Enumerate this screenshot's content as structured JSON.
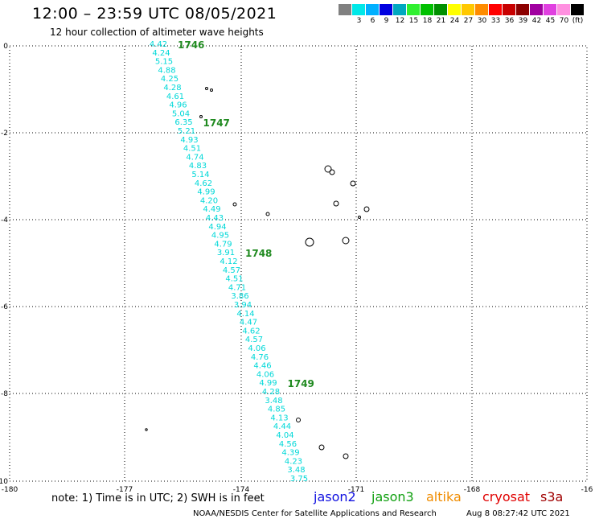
{
  "header": {
    "title": "12:00 – 23:59 UTC 08/05/2021",
    "subtitle": "12 hour collection of altimeter wave heights"
  },
  "legend": {
    "unit_label": "(ft)",
    "items": [
      {
        "label": "",
        "color": "#808080"
      },
      {
        "label": "3",
        "color": "#00e8e8"
      },
      {
        "label": "6",
        "color": "#00b0ff"
      },
      {
        "label": "9",
        "color": "#0000e0"
      },
      {
        "label": "12",
        "color": "#00a8c0"
      },
      {
        "label": "15",
        "color": "#30f030"
      },
      {
        "label": "18",
        "color": "#00c000"
      },
      {
        "label": "21",
        "color": "#009000"
      },
      {
        "label": "24",
        "color": "#ffff00"
      },
      {
        "label": "27",
        "color": "#ffc800"
      },
      {
        "label": "30",
        "color": "#ff8c00"
      },
      {
        "label": "33",
        "color": "#ff0000"
      },
      {
        "label": "36",
        "color": "#c80000"
      },
      {
        "label": "39",
        "color": "#8c0000"
      },
      {
        "label": "42",
        "color": "#a000a0"
      },
      {
        "label": "45",
        "color": "#e040e0"
      },
      {
        "label": "70",
        "color": "#ff90e0"
      },
      {
        "label": "",
        "color": "#000000"
      }
    ]
  },
  "map": {
    "lon_labels": [
      "-180",
      "-177",
      "-174",
      "-171",
      "-168",
      "-16"
    ],
    "lat_labels": [
      "0",
      "-2",
      "-4",
      "-6",
      "-8",
      "-10"
    ],
    "track_color": "#00d8d8",
    "time_color": "#208a20",
    "track_values": [
      "4.42",
      "4.24",
      "5.15",
      "4.88",
      "4.25",
      "4.28",
      "4.61",
      "4.96",
      "5.04",
      "6.35",
      "5.21",
      "4.93",
      "4.51",
      "4.74",
      "4.83",
      "5.14",
      "4.62",
      "4.99",
      "4.20",
      "4.49",
      "4.43",
      "4.94",
      "4.95",
      "4.79",
      "3.91",
      "4.12",
      "4.57",
      "4.51",
      "4.71",
      "3.86",
      "3.94",
      "4.14",
      "4.47",
      "4.62",
      "4.57",
      "4.06",
      "4.76",
      "4.46",
      "4.06",
      "4.99",
      "4.28",
      "3.48",
      "4.85",
      "4.13",
      "4.44",
      "4.04",
      "4.56",
      "4.39",
      "4.23",
      "3.48",
      "3.75"
    ],
    "time_labels": [
      {
        "text": "1746",
        "at_index": 0
      },
      {
        "text": "1747",
        "at_index": 9
      },
      {
        "text": "1748",
        "at_index": 24
      },
      {
        "text": "1749",
        "at_index": 39
      }
    ]
  },
  "footer": {
    "note": "note: 1) Time is in UTC; 2) SWH is in feet",
    "missions": [
      {
        "name": "jason2",
        "color": "#1010e0"
      },
      {
        "name": "jason3",
        "color": "#10a010"
      },
      {
        "name": "altika",
        "color": "#f08c00"
      },
      {
        "name": "cryosat",
        "color": "#e00000"
      },
      {
        "name": "s3a",
        "color": "#a00000"
      }
    ],
    "credit": "NOAA/NESDIS Center for Satellite Applications and Research",
    "timestamp": "Aug  8 08:27:42 UTC 2021"
  }
}
